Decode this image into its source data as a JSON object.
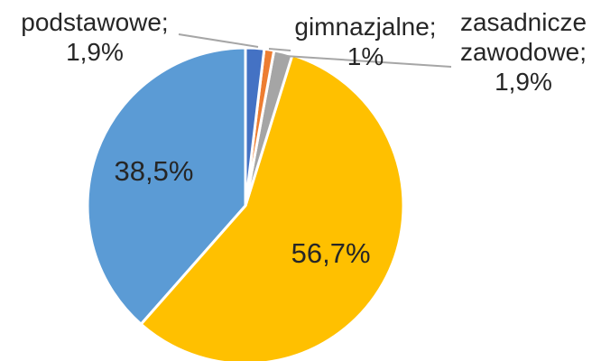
{
  "chart_data": {
    "type": "pie",
    "categories": [
      "podstawowe;",
      "gimnazjalne;",
      "zasadnicze zawodowe;",
      null,
      null
    ],
    "values": [
      1.9,
      1,
      1.9,
      56.7,
      38.5
    ],
    "value_labels": [
      "1,9%",
      "1%",
      "1,9%",
      "56,7%",
      "38,5%"
    ],
    "colors": [
      "#4472c4",
      "#ed7d31",
      "#a5a5a5",
      "#ffc000",
      "#5b9bd5"
    ]
  }
}
